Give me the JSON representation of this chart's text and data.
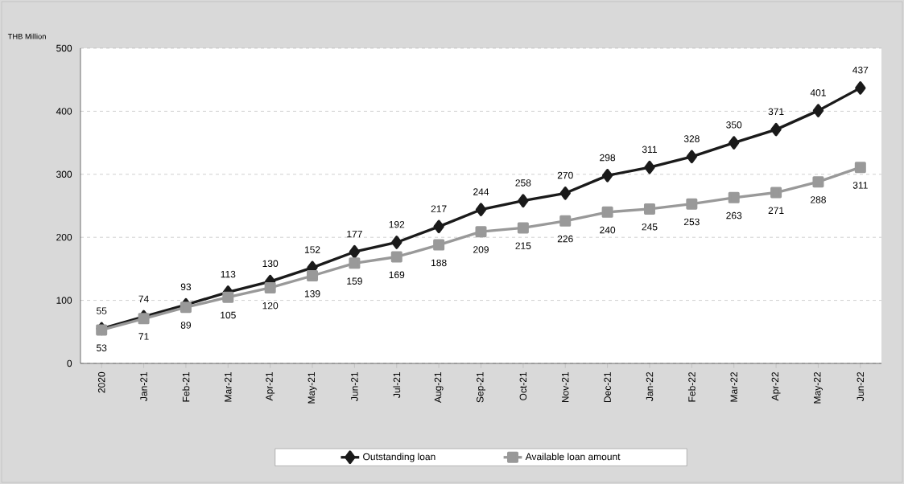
{
  "chart_data": {
    "type": "line",
    "ylabel": "THB Million",
    "categories": [
      "2020",
      "Jan-21",
      "Feb-21",
      "Mar-21",
      "Apr-21",
      "May-21",
      "Jun-21",
      "Jul-21",
      "Aug-21",
      "Sep-21",
      "Oct-21",
      "Nov-21",
      "Dec-21",
      "Jan-22",
      "Feb-22",
      "Mar-22",
      "Apr-22",
      "May-22",
      "Jun-22"
    ],
    "series": [
      {
        "name": "Outstanding loan",
        "color": "#1a1a1a",
        "marker": "diamond",
        "values": [
          55,
          74,
          93,
          113,
          130,
          152,
          177,
          192,
          217,
          244,
          258,
          270,
          298,
          311,
          328,
          350,
          371,
          401,
          437
        ]
      },
      {
        "name": "Available loan amount",
        "color": "#999999",
        "marker": "square",
        "values": [
          53,
          71,
          89,
          105,
          120,
          139,
          159,
          169,
          188,
          209,
          215,
          226,
          240,
          245,
          253,
          263,
          271,
          288,
          311
        ]
      }
    ],
    "ylim": [
      0,
      500
    ],
    "yticks": [
      0,
      100,
      200,
      300,
      400,
      500
    ],
    "grid": "y",
    "legend": "bottom",
    "data_labels": true,
    "line_style": "solid"
  }
}
